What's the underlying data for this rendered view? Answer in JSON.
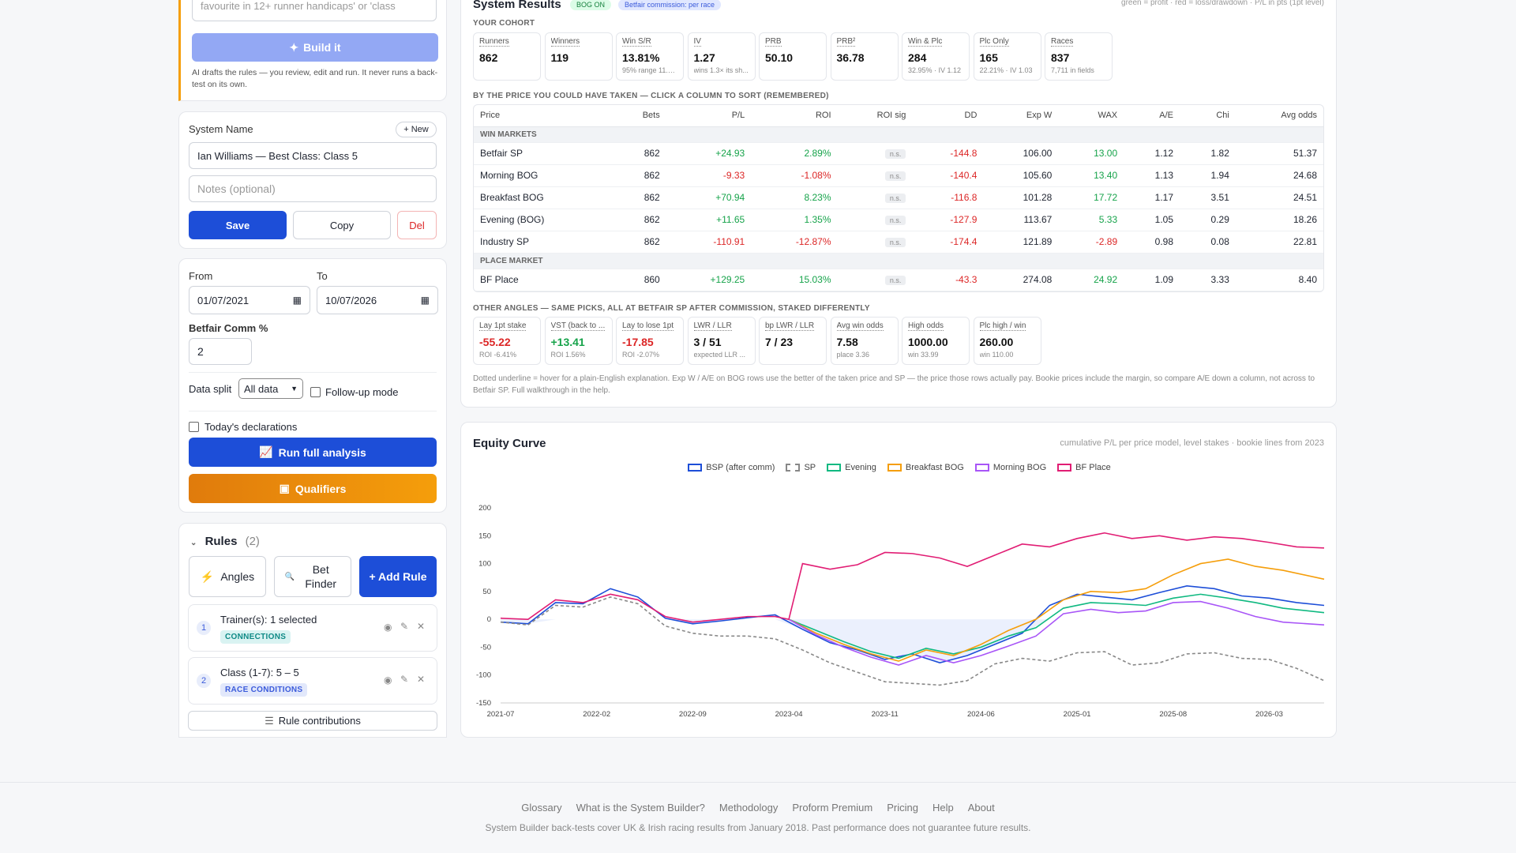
{
  "builder": {
    "prompt_text": "favourite in 12+ runner handicaps' or 'class",
    "build_label": "Build it",
    "disclaimer": "AI drafts the rules — you review, edit and run. It never runs a back-test on its own."
  },
  "system": {
    "name_label": "System Name",
    "new_label": "+ New",
    "name_value": "Ian Williams — Best Class: Class 5",
    "notes_placeholder": "Notes (optional)",
    "save_label": "Save",
    "copy_label": "Copy",
    "del_label": "Del"
  },
  "filters": {
    "from_label": "From",
    "from_value": "01/07/2021",
    "to_label": "To",
    "to_value": "10/07/2026",
    "comm_label": "Betfair Comm %",
    "comm_value": "2",
    "split_label": "Data split",
    "split_value": "All data",
    "followup_label": "Follow-up mode",
    "today_label": "Today's declarations",
    "run_label": "Run full analysis",
    "qualifiers_label": "Qualifiers"
  },
  "rules": {
    "title": "Rules",
    "count": "(2)",
    "angles_label": "Angles",
    "bet_finder_label": "Bet Finder",
    "add_rule_label": "+ Add Rule",
    "items": [
      {
        "num": "1",
        "text": "Trainer(s): 1 selected",
        "tag": "CONNECTIONS",
        "tag_color": "#0e9f9a"
      },
      {
        "num": "2",
        "text": "Class (1-7): 5 – 5",
        "tag": "RACE CONDITIONS",
        "tag_color": "#3b5bdb"
      }
    ],
    "contributions_label": "Rule contributions"
  },
  "results": {
    "title": "System Results",
    "badge_bog": "BOG ON",
    "badge_comm": "Betfair commission: per race",
    "legend_note": "green = profit · red = loss/drawdown · P/L in pts (1pt level)",
    "cohort_label": "YOUR COHORT",
    "cohort": [
      {
        "t": "Runners",
        "v": "862",
        "s": ""
      },
      {
        "t": "Winners",
        "v": "119",
        "s": ""
      },
      {
        "t": "Win S/R",
        "v": "13.81%",
        "s": "95% range 11.7..."
      },
      {
        "t": "IV",
        "v": "1.27",
        "s": "wins 1.3× its sh..."
      },
      {
        "t": "PRB",
        "v": "50.10",
        "s": ""
      },
      {
        "t": "PRB²",
        "v": "36.78",
        "s": ""
      },
      {
        "t": "Win & Plc",
        "v": "284",
        "s": "32.95% · IV 1.12"
      },
      {
        "t": "Plc Only",
        "v": "165",
        "s": "22.21% · IV 1.03"
      },
      {
        "t": "Races",
        "v": "837",
        "s": "7,711 in fields"
      }
    ],
    "price_label": "BY THE PRICE YOU COULD HAVE TAKEN — CLICK A COLUMN TO SORT (REMEMBERED)",
    "columns": [
      "Price",
      "Bets",
      "P/L",
      "ROI",
      "ROI sig",
      "DD",
      "Exp W",
      "WAX",
      "A/E",
      "Chi",
      "Avg odds"
    ],
    "win_markets_label": "WIN MARKETS",
    "win_rows": [
      {
        "price": "Betfair SP",
        "bets": "862",
        "pl": "+24.93",
        "roi": "2.89%",
        "sig": "n.s.",
        "dd": "-144.8",
        "expw": "106.00",
        "wax": "13.00",
        "ae": "1.12",
        "chi": "1.82",
        "odds": "51.37",
        "pl_c": "pos",
        "roi_c": "pos",
        "wax_c": "pos"
      },
      {
        "price": "Morning BOG",
        "bets": "862",
        "pl": "-9.33",
        "roi": "-1.08%",
        "sig": "n.s.",
        "dd": "-140.4",
        "expw": "105.60",
        "wax": "13.40",
        "ae": "1.13",
        "chi": "1.94",
        "odds": "24.68",
        "pl_c": "neg",
        "roi_c": "neg",
        "wax_c": "pos"
      },
      {
        "price": "Breakfast BOG",
        "bets": "862",
        "pl": "+70.94",
        "roi": "8.23%",
        "sig": "n.s.",
        "dd": "-116.8",
        "expw": "101.28",
        "wax": "17.72",
        "ae": "1.17",
        "chi": "3.51",
        "odds": "24.51",
        "pl_c": "pos",
        "roi_c": "pos",
        "wax_c": "pos"
      },
      {
        "price": "Evening (BOG)",
        "bets": "862",
        "pl": "+11.65",
        "roi": "1.35%",
        "sig": "n.s.",
        "dd": "-127.9",
        "expw": "113.67",
        "wax": "5.33",
        "ae": "1.05",
        "chi": "0.29",
        "odds": "18.26",
        "pl_c": "pos",
        "roi_c": "pos",
        "wax_c": "pos"
      },
      {
        "price": "Industry SP",
        "bets": "862",
        "pl": "-110.91",
        "roi": "-12.87%",
        "sig": "n.s.",
        "dd": "-174.4",
        "expw": "121.89",
        "wax": "-2.89",
        "ae": "0.98",
        "chi": "0.08",
        "odds": "22.81",
        "pl_c": "neg",
        "roi_c": "neg",
        "wax_c": "neg"
      }
    ],
    "place_market_label": "PLACE MARKET",
    "place_rows": [
      {
        "price": "BF Place",
        "bets": "860",
        "pl": "+129.25",
        "roi": "15.03%",
        "sig": "n.s.",
        "dd": "-43.3",
        "expw": "274.08",
        "wax": "24.92",
        "ae": "1.09",
        "chi": "3.33",
        "odds": "8.40",
        "pl_c": "pos",
        "roi_c": "pos",
        "wax_c": "pos"
      }
    ],
    "angles_label": "OTHER ANGLES — SAME PICKS, ALL AT BETFAIR SP AFTER COMMISSION, STAKED DIFFERENTLY",
    "angles": [
      {
        "t": "Lay 1pt stake",
        "v": "-55.22",
        "s": "ROI -6.41%",
        "c": "#dc2626"
      },
      {
        "t": "VST (back to ...",
        "v": "+13.41",
        "s": "ROI 1.56%",
        "c": "#16a34a"
      },
      {
        "t": "Lay to lose 1pt",
        "v": "-17.85",
        "s": "ROI -2.07%",
        "c": "#dc2626"
      },
      {
        "t": "LWR / LLR",
        "v": "3 / 51",
        "s": "expected LLR ...",
        "c": "#111"
      },
      {
        "t": "bp LWR / LLR",
        "v": "7 / 23",
        "s": "",
        "c": "#111"
      },
      {
        "t": "Avg win odds",
        "v": "7.58",
        "s": "place 3.36",
        "c": "#111"
      },
      {
        "t": "High odds",
        "v": "1000.00",
        "s": "win 33.99",
        "c": "#111"
      },
      {
        "t": "Plc high / win",
        "v": "260.00",
        "s": "win 110.00",
        "c": "#111"
      }
    ],
    "footnote": "Dotted underline = hover for a plain-English explanation. Exp W / A/E on BOG rows use the better of the taken price and SP — the price those rows actually pay. Bookie prices include the margin, so compare A/E down a column, not across to Betfair SP. Full walkthrough in the help."
  },
  "equity": {
    "title": "Equity Curve",
    "note": "cumulative P/L per price model, level stakes · bookie lines from 2023"
  },
  "chart_data": {
    "type": "line",
    "title": "Equity Curve",
    "xlabel": "",
    "ylabel": "",
    "ylim": [
      -150,
      200
    ],
    "yticks": [
      -150,
      -100,
      -50,
      0,
      50,
      100,
      150,
      200
    ],
    "xticks": [
      "2021-07",
      "2022-02",
      "2022-09",
      "2023-04",
      "2023-11",
      "2024-06",
      "2025-01",
      "2025-08",
      "2026-03"
    ],
    "xrange": [
      "2021-07",
      "2026-07"
    ],
    "legend": "top-center",
    "grid": false,
    "series": [
      {
        "name": "BSP (after comm)",
        "color": "#1d4ed8",
        "dash": false,
        "x": [
          "2021-07",
          "2021-09",
          "2021-11",
          "2022-01",
          "2022-03",
          "2022-05",
          "2022-07",
          "2022-09",
          "2022-11",
          "2023-01",
          "2023-03",
          "2023-05",
          "2023-07",
          "2023-09",
          "2023-11",
          "2024-01",
          "2024-03",
          "2024-05",
          "2024-07",
          "2024-09",
          "2024-11",
          "2025-01",
          "2025-03",
          "2025-05",
          "2025-07",
          "2025-09",
          "2025-11",
          "2026-01",
          "2026-03",
          "2026-05",
          "2026-07"
        ],
        "y": [
          -5,
          -8,
          30,
          28,
          55,
          40,
          2,
          -8,
          -3,
          3,
          8,
          -18,
          -42,
          -55,
          -72,
          -62,
          -78,
          -65,
          -45,
          -25,
          25,
          45,
          40,
          35,
          48,
          60,
          55,
          42,
          38,
          30,
          25
        ]
      },
      {
        "name": "SP",
        "color": "#888888",
        "dash": true,
        "x": [
          "2021-07",
          "2021-09",
          "2021-11",
          "2022-01",
          "2022-03",
          "2022-05",
          "2022-07",
          "2022-09",
          "2022-11",
          "2023-01",
          "2023-03",
          "2023-05",
          "2023-07",
          "2023-09",
          "2023-11",
          "2024-01",
          "2024-03",
          "2024-05",
          "2024-07",
          "2024-09",
          "2024-11",
          "2025-01",
          "2025-03",
          "2025-05",
          "2025-07",
          "2025-09",
          "2025-11",
          "2026-01",
          "2026-03",
          "2026-05",
          "2026-07"
        ],
        "y": [
          -5,
          -10,
          25,
          22,
          40,
          28,
          -12,
          -25,
          -30,
          -30,
          -35,
          -55,
          -78,
          -95,
          -112,
          -115,
          -118,
          -110,
          -80,
          -70,
          -75,
          -60,
          -58,
          -82,
          -78,
          -62,
          -60,
          -70,
          -72,
          -88,
          -110
        ]
      },
      {
        "name": "Evening",
        "color": "#10b981",
        "dash": false,
        "x": [
          "2023-04",
          "2023-06",
          "2023-08",
          "2023-10",
          "2023-12",
          "2024-02",
          "2024-04",
          "2024-06",
          "2024-08",
          "2024-10",
          "2024-12",
          "2025-02",
          "2025-04",
          "2025-06",
          "2025-08",
          "2025-10",
          "2025-12",
          "2026-02",
          "2026-04",
          "2026-07"
        ],
        "y": [
          0,
          -20,
          -40,
          -58,
          -70,
          -52,
          -62,
          -50,
          -30,
          -15,
          20,
          30,
          28,
          25,
          38,
          45,
          38,
          30,
          20,
          12
        ]
      },
      {
        "name": "Breakfast BOG",
        "color": "#f59e0b",
        "dash": false,
        "x": [
          "2023-04",
          "2023-06",
          "2023-08",
          "2023-10",
          "2023-12",
          "2024-02",
          "2024-04",
          "2024-06",
          "2024-08",
          "2024-10",
          "2024-12",
          "2025-02",
          "2025-04",
          "2025-06",
          "2025-08",
          "2025-10",
          "2025-12",
          "2026-02",
          "2026-04",
          "2026-07"
        ],
        "y": [
          0,
          -25,
          -45,
          -62,
          -75,
          -55,
          -65,
          -45,
          -20,
          0,
          35,
          50,
          48,
          55,
          80,
          100,
          108,
          95,
          88,
          72
        ]
      },
      {
        "name": "Morning BOG",
        "color": "#a855f7",
        "dash": false,
        "x": [
          "2023-04",
          "2023-06",
          "2023-08",
          "2023-10",
          "2023-12",
          "2024-02",
          "2024-04",
          "2024-06",
          "2024-08",
          "2024-10",
          "2024-12",
          "2025-02",
          "2025-04",
          "2025-06",
          "2025-08",
          "2025-10",
          "2025-12",
          "2026-02",
          "2026-04",
          "2026-07"
        ],
        "y": [
          0,
          -28,
          -50,
          -68,
          -82,
          -65,
          -78,
          -65,
          -48,
          -30,
          10,
          18,
          12,
          15,
          30,
          32,
          20,
          5,
          -5,
          -10
        ]
      },
      {
        "name": "BF Place",
        "color": "#e11d74",
        "dash": false,
        "x": [
          "2021-07",
          "2021-09",
          "2021-11",
          "2022-01",
          "2022-03",
          "2022-05",
          "2022-07",
          "2022-09",
          "2022-11",
          "2023-01",
          "2023-03",
          "2023-04",
          "2023-05",
          "2023-07",
          "2023-09",
          "2023-11",
          "2024-01",
          "2024-03",
          "2024-05",
          "2024-07",
          "2024-09",
          "2024-11",
          "2025-01",
          "2025-03",
          "2025-05",
          "2025-07",
          "2025-09",
          "2025-11",
          "2026-01",
          "2026-03",
          "2026-05",
          "2026-07"
        ],
        "y": [
          2,
          0,
          35,
          30,
          45,
          35,
          5,
          -5,
          0,
          5,
          5,
          0,
          100,
          90,
          98,
          120,
          118,
          110,
          95,
          115,
          135,
          130,
          145,
          155,
          145,
          150,
          142,
          148,
          145,
          138,
          130,
          128
        ]
      }
    ]
  },
  "footer": {
    "links": [
      "Glossary",
      "What is the System Builder?",
      "Methodology",
      "Proform Premium",
      "Pricing",
      "Help",
      "About"
    ],
    "disclaimer": "System Builder back-tests cover UK & Irish racing results from January 2018. Past performance does not guarantee future results."
  }
}
